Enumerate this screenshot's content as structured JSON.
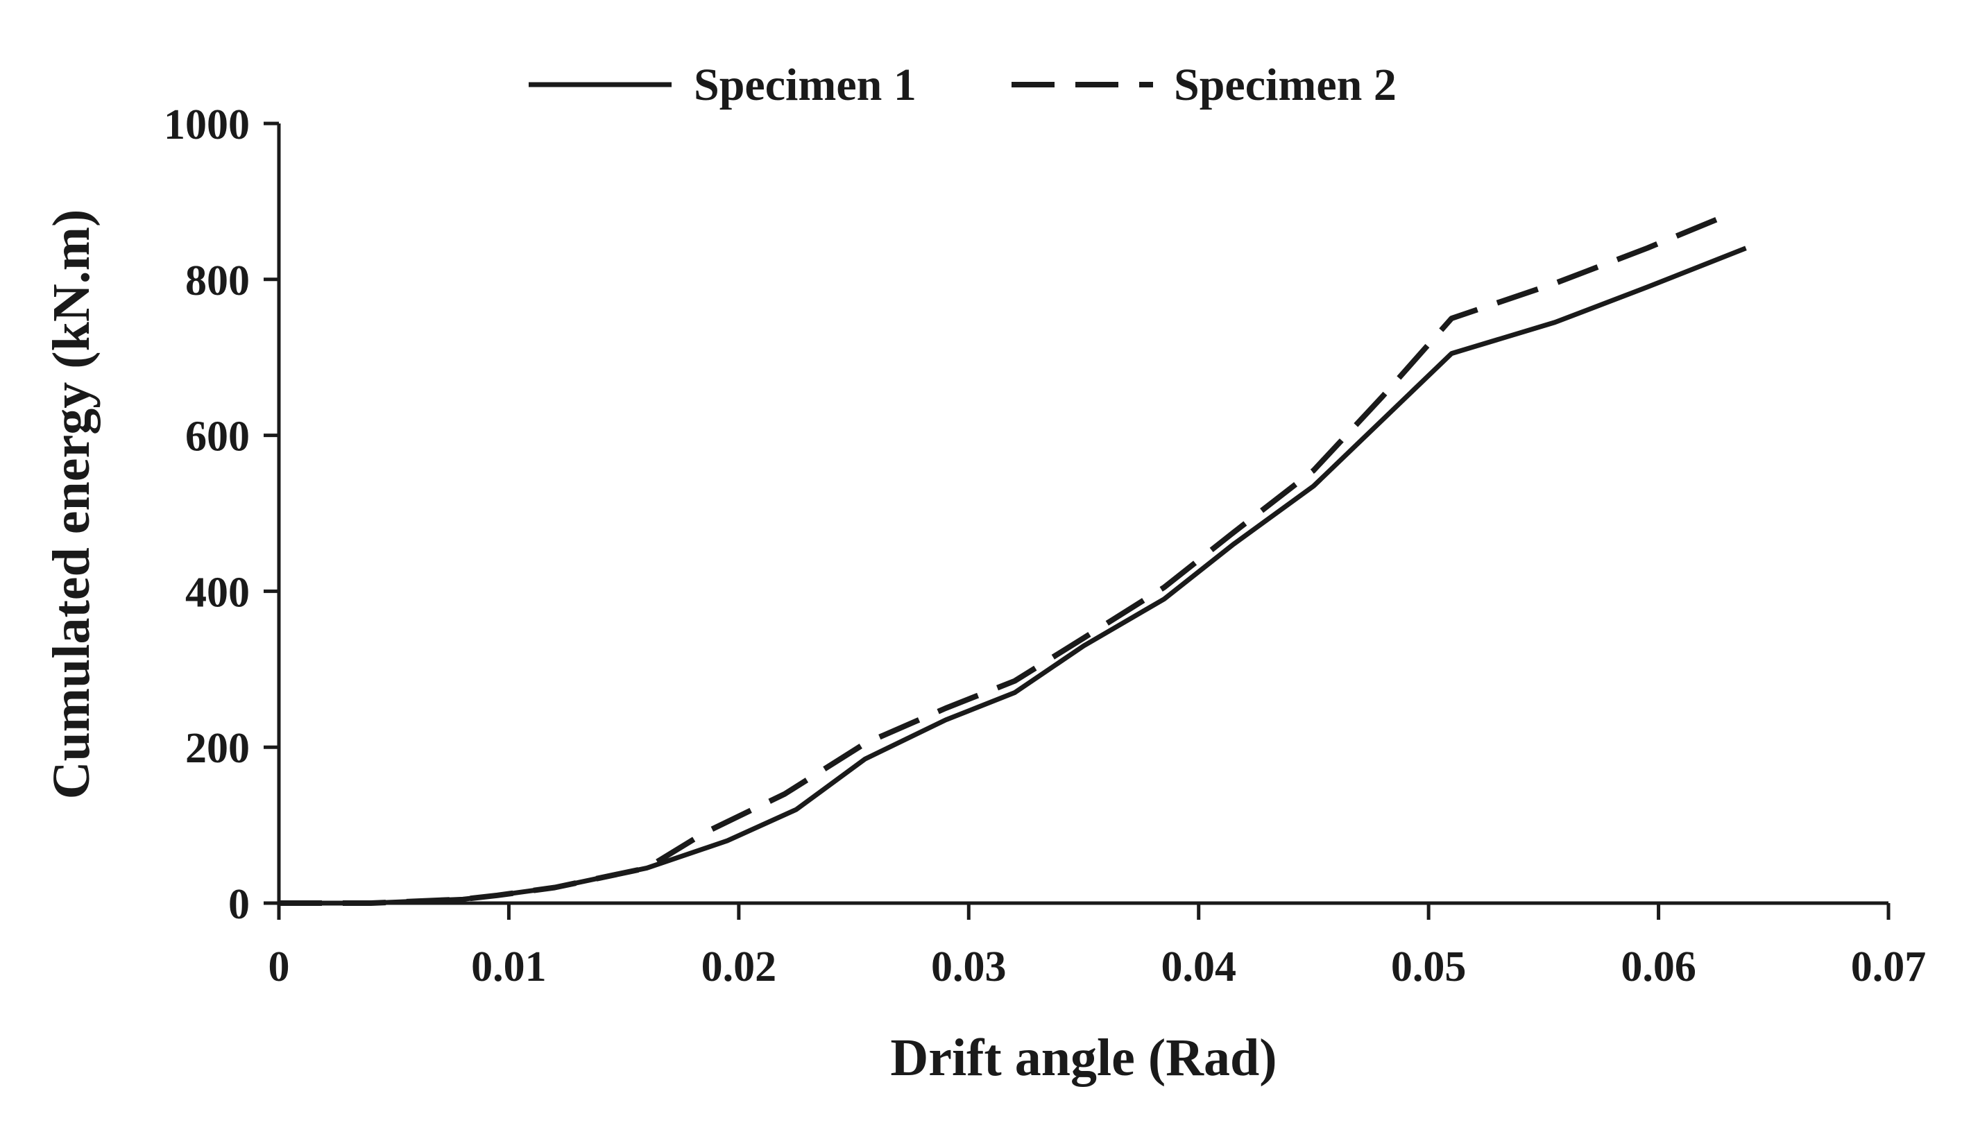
{
  "chart_data": {
    "type": "line",
    "title": "",
    "xlabel": "Drift angle (Rad)",
    "ylabel": "Cumulated energy (kN.m)",
    "xlim": [
      0,
      0.07
    ],
    "ylim": [
      0,
      1000
    ],
    "x_ticks": [
      0,
      0.01,
      0.02,
      0.03,
      0.04,
      0.05,
      0.06,
      0.07
    ],
    "x_tick_labels": [
      "0",
      "0.01",
      "0.02",
      "0.03",
      "0.04",
      "0.05",
      "0.06",
      "0.07"
    ],
    "y_ticks": [
      0,
      200,
      400,
      600,
      800,
      1000
    ],
    "y_tick_labels": [
      "0",
      "200",
      "400",
      "600",
      "800",
      "1000"
    ],
    "grid": false,
    "legend_position": "top-center",
    "series": [
      {
        "name": "Specimen 1",
        "style": "solid",
        "color": "#1a1a1a",
        "x": [
          0,
          0.004,
          0.008,
          0.0095,
          0.012,
          0.016,
          0.0195,
          0.0225,
          0.0255,
          0.029,
          0.032,
          0.035,
          0.0385,
          0.0415,
          0.045,
          0.048,
          0.051,
          0.0555,
          0.0595,
          0.0638
        ],
        "y": [
          0,
          0,
          5,
          10,
          20,
          45,
          80,
          120,
          185,
          235,
          270,
          330,
          390,
          460,
          535,
          620,
          705,
          745,
          790,
          840
        ]
      },
      {
        "name": "Specimen 2",
        "style": "dashed",
        "color": "#1a1a1a",
        "x": [
          0,
          0.004,
          0.008,
          0.0095,
          0.012,
          0.016,
          0.0185,
          0.022,
          0.0255,
          0.029,
          0.032,
          0.035,
          0.0385,
          0.0415,
          0.045,
          0.048,
          0.051,
          0.0555,
          0.0595,
          0.0632
        ],
        "y": [
          0,
          0,
          5,
          10,
          20,
          45,
          90,
          140,
          205,
          250,
          285,
          340,
          405,
          475,
          555,
          650,
          750,
          795,
          840,
          885
        ]
      }
    ]
  }
}
